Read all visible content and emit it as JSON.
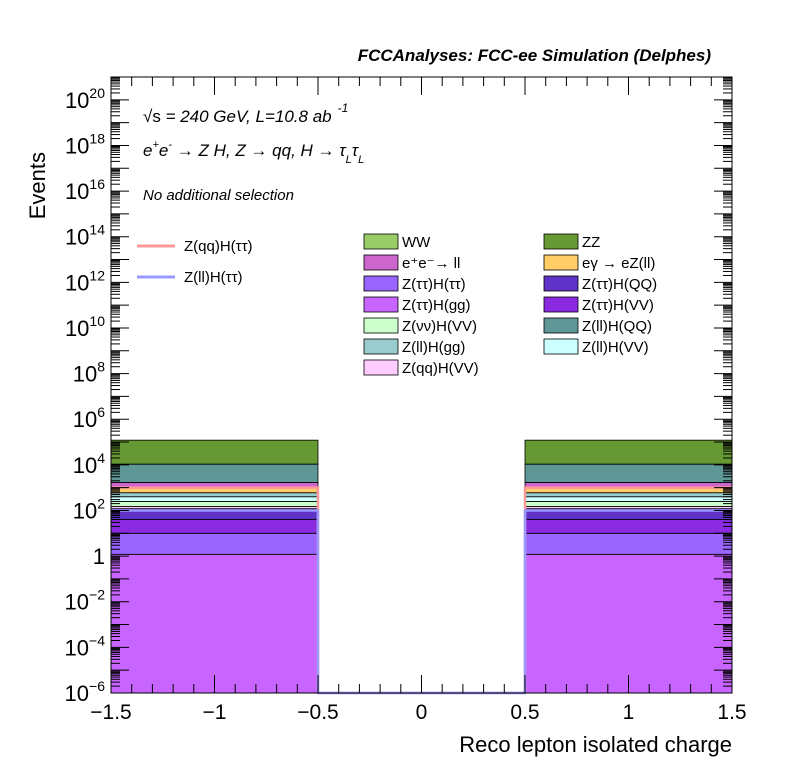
{
  "chart_data": {
    "type": "bar",
    "title": "FCCAnalyses: FCC-ee Simulation (Delphes)",
    "xlabel": "Reco lepton isolated charge",
    "ylabel": "Events",
    "xlim": [
      -1.5,
      1.5
    ],
    "ylim": [
      1e-06,
      1e+21
    ],
    "yscale": "log",
    "x_ticks": [
      "−1.5",
      "−1",
      "−0.5",
      "0",
      "0.5",
      "1",
      "1.5"
    ],
    "y_tick_labels": [
      {
        "value": 1e-06,
        "base": "10",
        "exp": "−6"
      },
      {
        "value": 0.0001,
        "base": "10",
        "exp": "−4"
      },
      {
        "value": 0.01,
        "base": "10",
        "exp": "−2"
      },
      {
        "value": 1,
        "base": "1",
        "exp": ""
      },
      {
        "value": 100.0,
        "base": "10",
        "exp": "2"
      },
      {
        "value": 10000.0,
        "base": "10",
        "exp": "4"
      },
      {
        "value": 1000000.0,
        "base": "10",
        "exp": "6"
      },
      {
        "value": 100000000.0,
        "base": "10",
        "exp": "8"
      },
      {
        "value": 10000000000.0,
        "base": "10",
        "exp": "10"
      },
      {
        "value": 1000000000000.0,
        "base": "10",
        "exp": "12"
      },
      {
        "value": 100000000000000.0,
        "base": "10",
        "exp": "14"
      },
      {
        "value": 1e+16,
        "base": "10",
        "exp": "16"
      },
      {
        "value": 1e+18,
        "base": "10",
        "exp": "18"
      },
      {
        "value": 1e+20,
        "base": "10",
        "exp": "20"
      }
    ],
    "annotations": {
      "energy_prefix": "√s",
      "energy_text": " = 240 GeV, L=10.8 ab",
      "energy_exp": "-1",
      "process": "e⁺e⁻ → Z H, Z → qq, H → τₗτₗ",
      "process_parts": {
        "a": "e",
        "a_sup": "+",
        "b": "e",
        "b_sup": "-",
        "c": " → Z H, Z  → qq, H  →  τ",
        "c_sub": "L",
        "d": "τ",
        "d_sub": "L"
      },
      "selection": "No additional selection"
    },
    "bins": [
      {
        "x_low": -1.5,
        "x_high": -0.5
      },
      {
        "x_low": -0.5,
        "x_high": 0.5
      },
      {
        "x_low": 0.5,
        "x_high": 1.5
      }
    ],
    "stack": [
      {
        "name": "Z(ττ)H(gg)",
        "color": "#c864ff",
        "values": [
          1.2,
          0,
          1.2
        ]
      },
      {
        "name": "Z(ττ)H(ττ)",
        "color": "#9a64ff",
        "values": [
          8.8,
          0,
          8.8
        ]
      },
      {
        "name": "Z(ττ)H(VV)",
        "color": "#8a2be2",
        "values": [
          30,
          0,
          30
        ]
      },
      {
        "name": "Z(ττ)H(QQ)",
        "color": "#5f32c8",
        "values": [
          80,
          0,
          80
        ]
      },
      {
        "name": "Z(qq)H(VV)",
        "color": "#ffccff",
        "values": [
          30,
          0,
          30
        ]
      },
      {
        "name": "Z(νν)H(VV)",
        "color": "#ccffcc",
        "values": [
          100,
          0,
          100
        ]
      },
      {
        "name": "Z(ll)H(VV)",
        "color": "#ccffff",
        "values": [
          150,
          0,
          150
        ]
      },
      {
        "name": "Z(ll)H(gg)",
        "color": "#99cccc",
        "values": [
          200,
          0,
          200
        ]
      },
      {
        "name": "eγ → eZ(ll)",
        "color": "#ffcc66",
        "values": [
          400,
          0,
          400
        ]
      },
      {
        "name": "e⁺e⁻→ ll",
        "color": "#cc66cc",
        "values": [
          700,
          0,
          700
        ]
      },
      {
        "name": "Z(ll)H(QQ)",
        "color": "#5f9696",
        "values": [
          9000,
          0,
          9000
        ]
      },
      {
        "name": "WW",
        "color": "#99cc66",
        "values": [
          100,
          0,
          100
        ]
      },
      {
        "name": "ZZ",
        "color": "#669933",
        "values": [
          110000,
          0,
          110000
        ]
      }
    ],
    "lines": [
      {
        "name": "Z(qq)H(ττ)",
        "color": "#ff9999",
        "values": [
          1000,
          0,
          1000
        ]
      },
      {
        "name": "Z(ll)H(ττ)",
        "color": "#9999ff",
        "values": [
          100,
          0,
          100
        ]
      }
    ],
    "legend_left": [
      "Z(qq)H(ττ)",
      "Z(ll)H(ττ)"
    ],
    "legend_col1": [
      "WW",
      "e⁺e⁻→ ll",
      "Z(ττ)H(ττ)",
      "Z(ττ)H(gg)",
      "Z(νν)H(VV)",
      "Z(ll)H(gg)",
      "Z(qq)H(VV)"
    ],
    "legend_col2": [
      "ZZ",
      "eγ → eZ(ll)",
      "Z(ττ)H(QQ)",
      "Z(ττ)H(VV)",
      "Z(ll)H(QQ)",
      "Z(ll)H(VV)"
    ],
    "legend_placement": "top (inside plot)",
    "grid": false
  }
}
